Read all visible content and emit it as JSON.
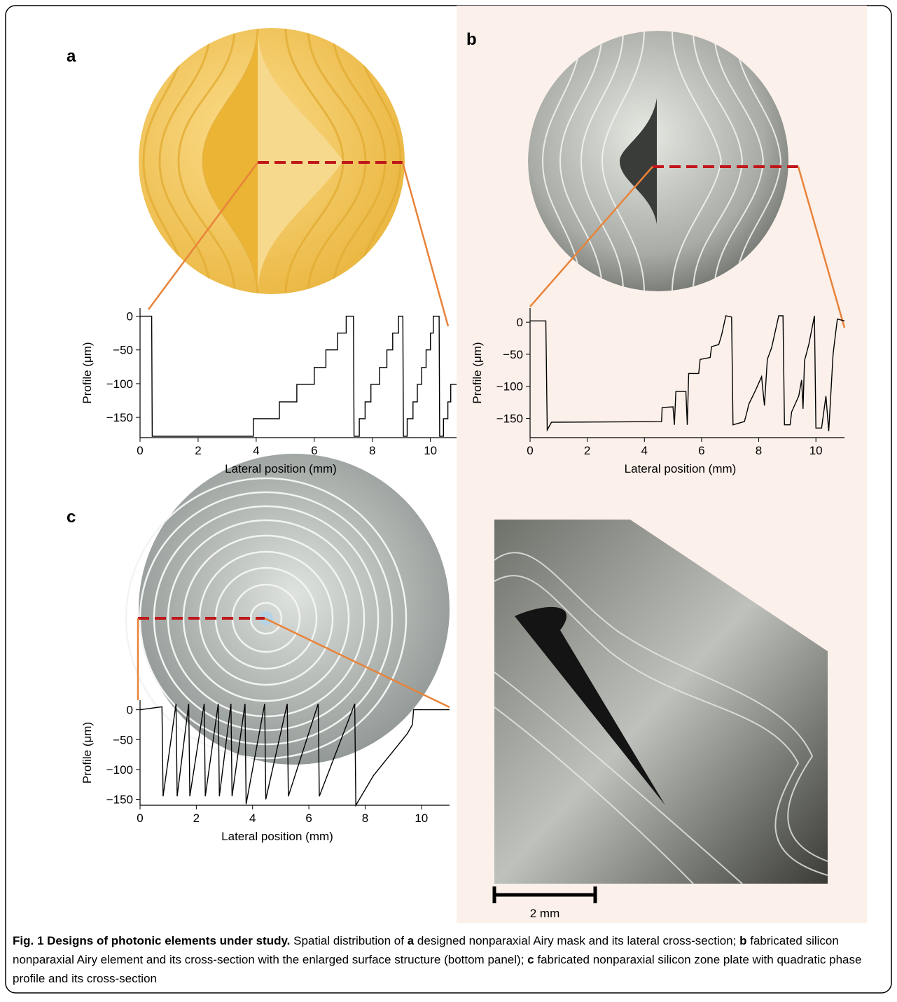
{
  "panel_labels": [
    "a",
    "b",
    "c"
  ],
  "chart_data": [
    {
      "type": "line",
      "ylabel": "Profile (μm)",
      "xlabel": "Lateral position (mm)",
      "color": "#000000",
      "xlim": [
        0,
        10.9
      ],
      "ylim": [
        -180,
        12
      ],
      "xticks": [
        0,
        2,
        4,
        6,
        8,
        10
      ],
      "yticks": [
        0,
        {
          "value": -50,
          "label": "−50"
        },
        {
          "value": -100,
          "label": "−100"
        },
        {
          "value": -150,
          "label": "−150"
        }
      ],
      "x": [
        0,
        0.4,
        0.42,
        3.9,
        3.9,
        4.8,
        4.8,
        5.4,
        5.4,
        6.0,
        6.0,
        6.4,
        6.4,
        6.8,
        6.8,
        7.1,
        7.1,
        7.35,
        7.37,
        7.55,
        7.55,
        7.75,
        7.75,
        7.95,
        7.95,
        8.25,
        8.25,
        8.5,
        8.5,
        8.7,
        8.7,
        8.9,
        8.9,
        9.05,
        9.07,
        9.2,
        9.2,
        9.4,
        9.4,
        9.55,
        9.55,
        9.7,
        9.7,
        9.85,
        9.85,
        10.0,
        10.0,
        10.1,
        10.1,
        10.3,
        10.32,
        10.45,
        10.45,
        10.6,
        10.6,
        10.7,
        10.7,
        10.9
      ],
      "values": [
        0,
        0,
        -178,
        -178,
        -152,
        -152,
        -127,
        -127,
        -101,
        -101,
        -76,
        -76,
        -50,
        -50,
        -25,
        -25,
        0,
        0,
        -178,
        -178,
        -152,
        -152,
        -127,
        -127,
        -101,
        -101,
        -76,
        -76,
        -50,
        -50,
        -25,
        -25,
        0,
        0,
        -178,
        -178,
        -152,
        -152,
        -127,
        -127,
        -101,
        -101,
        -76,
        -76,
        -50,
        -50,
        -25,
        -25,
        0,
        0,
        -178,
        -178,
        -152,
        -152,
        -127,
        -127,
        -101,
        -101
      ]
    },
    {
      "type": "line",
      "ylabel": "Profile (μm)",
      "xlabel": "Lateral position (mm)",
      "color": "#000000",
      "xlim": [
        0,
        11
      ],
      "ylim": [
        -180,
        22
      ],
      "xticks": [
        0,
        2,
        4,
        6,
        8,
        10
      ],
      "yticks": [
        0,
        {
          "value": -50,
          "label": "−50"
        },
        {
          "value": -100,
          "label": "−100"
        },
        {
          "value": -150,
          "label": "−150"
        }
      ],
      "x": [
        0,
        0.55,
        0.6,
        0.75,
        4.6,
        4.62,
        5.0,
        5.05,
        5.1,
        5.45,
        5.5,
        5.55,
        5.9,
        5.95,
        6.3,
        6.35,
        6.6,
        6.7,
        6.85,
        7.05,
        7.1,
        7.5,
        7.6,
        7.65,
        7.9,
        8.1,
        8.2,
        8.3,
        8.45,
        8.7,
        8.85,
        8.9,
        9.1,
        9.15,
        9.4,
        9.5,
        9.55,
        9.6,
        9.75,
        9.95,
        10.0,
        10.2,
        10.35,
        10.45,
        10.6,
        10.75,
        11
      ],
      "values": [
        2,
        2,
        -168,
        -156,
        -155,
        -133,
        -132,
        -160,
        -108,
        -108,
        -160,
        -80,
        -80,
        -58,
        -55,
        -38,
        -35,
        -20,
        10,
        8,
        -160,
        -155,
        -138,
        -128,
        -105,
        -85,
        -130,
        -58,
        -40,
        10,
        10,
        -160,
        -160,
        -140,
        -115,
        -90,
        -135,
        -60,
        -35,
        10,
        -165,
        -165,
        -115,
        -170,
        -50,
        5,
        2
      ]
    },
    {
      "type": "line",
      "ylabel": "Profile (μm)",
      "xlabel": "Lateral position (mm)",
      "color": "#000000",
      "xlim": [
        0,
        11
      ],
      "ylim": [
        -160,
        16
      ],
      "xticks": [
        0,
        2,
        4,
        6,
        8,
        10
      ],
      "yticks": [
        0,
        {
          "value": -50,
          "label": "−50"
        },
        {
          "value": -100,
          "label": "−100"
        },
        {
          "value": -150,
          "label": "−150"
        }
      ],
      "x": [
        0,
        0.78,
        0.82,
        1.28,
        1.32,
        1.73,
        1.77,
        2.28,
        2.32,
        2.78,
        2.82,
        3.23,
        3.27,
        3.73,
        3.77,
        4.43,
        4.47,
        5.23,
        5.27,
        6.33,
        6.37,
        7.63,
        7.67,
        8.3,
        8.9,
        9.5,
        9.68,
        9.72,
        11
      ],
      "values": [
        0,
        5,
        -145,
        10,
        -145,
        10,
        -145,
        10,
        -145,
        10,
        -145,
        10,
        -145,
        10,
        -158,
        10,
        -150,
        10,
        -145,
        10,
        -145,
        10,
        -160,
        -110,
        -75,
        -40,
        -25,
        0,
        0
      ]
    }
  ],
  "scale_bar": "2 mm",
  "caption": {
    "title": "Fig. 1 Designs of photonic elements under study.",
    "segments": [
      "Spatial distribution of",
      "a",
      "designed nonparaxial Airy mask and its lateral cross-section;",
      "b",
      "fabricated silicon nonparaxial Airy element and its cross-section with the enlarged surface structure (bottom panel);",
      "c",
      "fabricated nonparaxial silicon zone plate with quadratic phase profile and its cross-section"
    ]
  }
}
